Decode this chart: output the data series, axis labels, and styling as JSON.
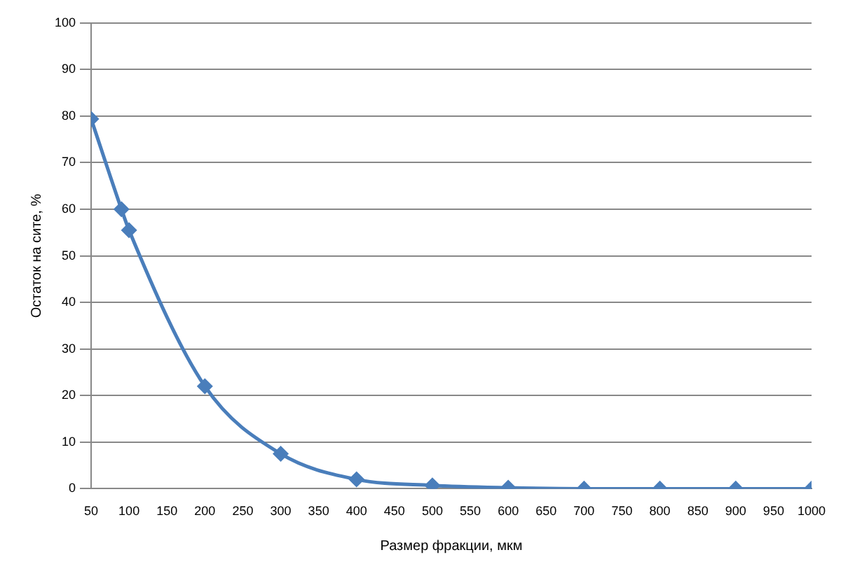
{
  "chart_data": {
    "type": "line",
    "xlabel": "Размер фракции, мкм",
    "ylabel": "Остаток на сите, %",
    "x": [
      50,
      90,
      100,
      200,
      300,
      400,
      500,
      600,
      700,
      800,
      900,
      1000
    ],
    "series": [
      {
        "color": "#4a7ebb",
        "values": [
          79.4,
          60,
          55.5,
          22,
          7.5,
          2,
          0.7,
          0.2,
          0,
          0,
          0,
          0
        ]
      }
    ],
    "xlim": [
      50,
      1000
    ],
    "xticks": [
      50,
      100,
      150,
      200,
      250,
      300,
      350,
      400,
      450,
      500,
      550,
      600,
      650,
      700,
      750,
      800,
      850,
      900,
      950,
      1000
    ],
    "ylim": [
      0,
      100
    ],
    "yticks": [
      0,
      10,
      20,
      30,
      40,
      50,
      60,
      70,
      80,
      90,
      100
    ],
    "grid": "y",
    "legend": false,
    "marker": "diamond",
    "line_style": "solid"
  }
}
